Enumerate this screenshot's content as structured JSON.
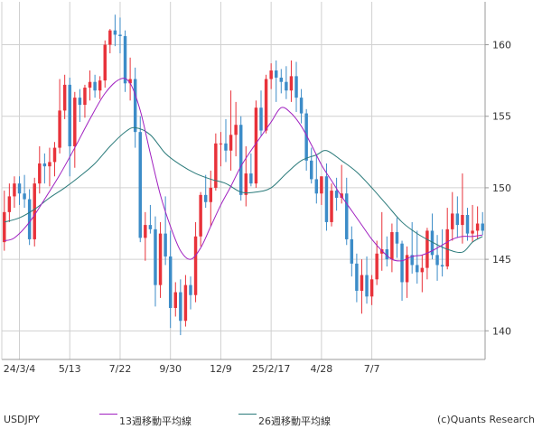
{
  "chart_data": {
    "type": "candlestick",
    "symbol": "USDJPY",
    "copyright": "(c)Quants Research",
    "y_ticks": [
      140,
      145,
      150,
      155,
      160
    ],
    "ylim": [
      138,
      163
    ],
    "x_ticks": [
      "24/3/4",
      "5/13",
      "7/22",
      "9/30",
      "12/9",
      "25/2/17",
      "4/28",
      "7/7"
    ],
    "x_tick_index": [
      3,
      13,
      23,
      33,
      43,
      53,
      63,
      73
    ],
    "grid": true,
    "legend": [
      {
        "label": "13週移動平均線",
        "color": "#a020c0"
      },
      {
        "label": "26週移動平均線",
        "color": "#2a7a7a"
      }
    ],
    "colors": {
      "up": "#e8323a",
      "down": "#3c8cc8",
      "grid": "#d0d0d0",
      "axis": "#999999"
    },
    "candles": [
      [
        146.2,
        149.8,
        145.6,
        148.3
      ],
      [
        148.3,
        150.3,
        147.6,
        149.4
      ],
      [
        149.4,
        150.8,
        148.6,
        150.3
      ],
      [
        150.3,
        150.8,
        148.8,
        149.6
      ],
      [
        149.6,
        150.9,
        148.6,
        149.2
      ],
      [
        149.2,
        149.9,
        146.0,
        146.4
      ],
      [
        146.4,
        150.7,
        145.9,
        150.3
      ],
      [
        150.3,
        152.9,
        149.6,
        151.7
      ],
      [
        151.7,
        152.4,
        150.3,
        151.5
      ],
      [
        151.5,
        152.8,
        150.1,
        151.8
      ],
      [
        151.8,
        153.2,
        150.8,
        152.8
      ],
      [
        152.8,
        157.6,
        152.4,
        155.4
      ],
      [
        155.4,
        157.9,
        154.8,
        157.2
      ],
      [
        157.2,
        157.7,
        150.8,
        152.9
      ],
      [
        152.9,
        156.7,
        151.4,
        156.3
      ],
      [
        156.3,
        156.9,
        154.6,
        155.8
      ],
      [
        155.8,
        157.2,
        154.9,
        157.0
      ],
      [
        157.0,
        158.2,
        156.1,
        157.4
      ],
      [
        157.4,
        157.9,
        156.3,
        156.8
      ],
      [
        156.8,
        157.8,
        156.2,
        157.5
      ],
      [
        157.5,
        160.3,
        157.0,
        160.0
      ],
      [
        160.0,
        161.1,
        159.4,
        161.0
      ],
      [
        161.0,
        162.1,
        159.9,
        160.7
      ],
      [
        160.7,
        161.9,
        159.4,
        160.6
      ],
      [
        160.6,
        161.0,
        156.7,
        157.3
      ],
      [
        157.3,
        159.1,
        156.1,
        157.6
      ],
      [
        157.6,
        158.4,
        152.8,
        153.9
      ],
      [
        153.9,
        155.0,
        146.2,
        146.5
      ],
      [
        146.5,
        148.3,
        144.9,
        147.4
      ],
      [
        147.4,
        148.8,
        146.8,
        147.1
      ],
      [
        147.1,
        148.0,
        141.7,
        143.2
      ],
      [
        143.2,
        147.6,
        142.3,
        146.8
      ],
      [
        146.8,
        149.4,
        144.6,
        145.2
      ],
      [
        145.2,
        147.0,
        140.2,
        141.6
      ],
      [
        141.6,
        143.4,
        141.0,
        142.7
      ],
      [
        142.7,
        143.6,
        139.7,
        140.7
      ],
      [
        140.7,
        143.9,
        140.3,
        143.2
      ],
      [
        143.2,
        143.8,
        141.5,
        142.5
      ],
      [
        142.5,
        147.6,
        142.0,
        146.6
      ],
      [
        146.6,
        149.7,
        145.9,
        149.5
      ],
      [
        149.5,
        150.9,
        148.6,
        149.0
      ],
      [
        149.0,
        151.2,
        147.3,
        150.0
      ],
      [
        150.0,
        153.8,
        149.8,
        153.1
      ],
      [
        153.1,
        153.9,
        151.5,
        153.1
      ],
      [
        153.1,
        154.8,
        151.8,
        152.6
      ],
      [
        152.6,
        156.8,
        151.2,
        153.7
      ],
      [
        153.7,
        156.0,
        152.2,
        154.4
      ],
      [
        154.4,
        155.0,
        149.1,
        149.5
      ],
      [
        149.5,
        152.9,
        148.7,
        151.0
      ],
      [
        151.0,
        152.4,
        150.1,
        150.3
      ],
      [
        150.3,
        156.1,
        150.0,
        155.6
      ],
      [
        155.6,
        156.8,
        153.6,
        154.0
      ],
      [
        154.0,
        157.9,
        153.8,
        157.6
      ],
      [
        157.6,
        158.7,
        156.9,
        158.2
      ],
      [
        158.2,
        158.9,
        156.0,
        157.7
      ],
      [
        157.7,
        158.3,
        156.6,
        157.4
      ],
      [
        157.4,
        158.5,
        156.2,
        156.8
      ],
      [
        156.8,
        158.9,
        156.0,
        157.8
      ],
      [
        157.8,
        158.8,
        155.3,
        156.3
      ],
      [
        156.3,
        156.9,
        154.5,
        155.2
      ],
      [
        155.2,
        155.5,
        151.2,
        151.9
      ],
      [
        151.9,
        152.8,
        150.3,
        150.6
      ],
      [
        150.6,
        152.3,
        148.9,
        149.6
      ],
      [
        149.6,
        150.8,
        148.8,
        150.8
      ],
      [
        150.8,
        151.7,
        147.0,
        147.6
      ],
      [
        147.6,
        150.3,
        147.3,
        149.8
      ],
      [
        149.8,
        150.7,
        148.4,
        149.3
      ],
      [
        149.3,
        151.6,
        148.9,
        149.6
      ],
      [
        149.6,
        150.7,
        146.0,
        146.4
      ],
      [
        146.4,
        147.3,
        143.8,
        144.7
      ],
      [
        144.7,
        145.4,
        142.0,
        142.8
      ],
      [
        142.8,
        145.0,
        141.2,
        143.9
      ],
      [
        143.9,
        145.2,
        141.9,
        142.4
      ],
      [
        142.4,
        143.9,
        141.8,
        143.6
      ],
      [
        143.6,
        146.3,
        143.2,
        145.4
      ],
      [
        145.4,
        148.3,
        144.2,
        145.7
      ],
      [
        145.7,
        146.6,
        144.5,
        145.0
      ],
      [
        145.0,
        147.5,
        144.1,
        146.9
      ],
      [
        146.9,
        147.9,
        145.1,
        146.1
      ],
      [
        146.1,
        146.3,
        142.1,
        143.4
      ],
      [
        143.4,
        145.9,
        142.3,
        145.3
      ],
      [
        145.3,
        147.6,
        144.0,
        144.6
      ],
      [
        144.6,
        147.0,
        143.3,
        144.1
      ],
      [
        144.1,
        145.3,
        142.7,
        144.4
      ],
      [
        144.4,
        147.2,
        143.6,
        147.0
      ],
      [
        147.0,
        148.2,
        145.0,
        145.3
      ],
      [
        145.3,
        146.7,
        143.5,
        144.6
      ],
      [
        144.6,
        147.1,
        143.8,
        144.5
      ],
      [
        144.5,
        148.6,
        144.3,
        147.1
      ],
      [
        147.1,
        149.7,
        146.3,
        148.2
      ],
      [
        148.2,
        149.4,
        146.5,
        147.4
      ],
      [
        147.4,
        151.0,
        146.1,
        148.1
      ],
      [
        148.1,
        148.6,
        146.3,
        146.8
      ],
      [
        146.8,
        148.8,
        146.2,
        147.0
      ],
      [
        147.0,
        148.7,
        146.4,
        147.5
      ],
      [
        147.5,
        148.3,
        146.7,
        147.0
      ]
    ],
    "ma13": [
      [
        0,
        146.3
      ],
      [
        2,
        146.5
      ],
      [
        5,
        147.6
      ],
      [
        8,
        149.2
      ],
      [
        11,
        150.9
      ],
      [
        14,
        152.8
      ],
      [
        17,
        154.8
      ],
      [
        20,
        156.6
      ],
      [
        23,
        157.6
      ],
      [
        25,
        157.3
      ],
      [
        27,
        155.4
      ],
      [
        29,
        152.4
      ],
      [
        31,
        149.5
      ],
      [
        33,
        147.3
      ],
      [
        35,
        145.6
      ],
      [
        37,
        145.0
      ],
      [
        39,
        145.8
      ],
      [
        41,
        147.3
      ],
      [
        43,
        148.8
      ],
      [
        45,
        150.1
      ],
      [
        47,
        151.5
      ],
      [
        49,
        152.6
      ],
      [
        51,
        153.6
      ],
      [
        53,
        154.6
      ],
      [
        55,
        155.6
      ],
      [
        57,
        155.2
      ],
      [
        59,
        154.3
      ],
      [
        61,
        153.0
      ],
      [
        63,
        151.6
      ],
      [
        65,
        150.5
      ],
      [
        67,
        149.4
      ],
      [
        69,
        148.4
      ],
      [
        71,
        147.4
      ],
      [
        73,
        146.4
      ],
      [
        75,
        145.6
      ],
      [
        77,
        145.0
      ],
      [
        79,
        144.9
      ],
      [
        81,
        145.2
      ],
      [
        83,
        145.3
      ],
      [
        85,
        145.6
      ],
      [
        87,
        146.0
      ],
      [
        89,
        146.4
      ],
      [
        91,
        146.6
      ],
      [
        93,
        146.6
      ],
      [
        95,
        146.7
      ]
    ],
    "ma26": [
      [
        0,
        147.6
      ],
      [
        3,
        147.9
      ],
      [
        6,
        148.5
      ],
      [
        9,
        149.3
      ],
      [
        12,
        150.0
      ],
      [
        15,
        150.8
      ],
      [
        18,
        151.7
      ],
      [
        21,
        152.9
      ],
      [
        24,
        153.9
      ],
      [
        26,
        154.2
      ],
      [
        29,
        153.7
      ],
      [
        32,
        152.4
      ],
      [
        35,
        151.6
      ],
      [
        38,
        151.0
      ],
      [
        41,
        150.6
      ],
      [
        44,
        150.3
      ],
      [
        47,
        149.7
      ],
      [
        50,
        149.7
      ],
      [
        53,
        150.0
      ],
      [
        56,
        151.0
      ],
      [
        59,
        151.9
      ],
      [
        62,
        152.3
      ],
      [
        64,
        152.6
      ],
      [
        67,
        151.9
      ],
      [
        70,
        151.1
      ],
      [
        73,
        150.0
      ],
      [
        76,
        148.8
      ],
      [
        79,
        147.6
      ],
      [
        82,
        146.8
      ],
      [
        85,
        146.2
      ],
      [
        88,
        145.7
      ],
      [
        91,
        145.5
      ],
      [
        93,
        146.2
      ],
      [
        95,
        146.6
      ]
    ]
  }
}
